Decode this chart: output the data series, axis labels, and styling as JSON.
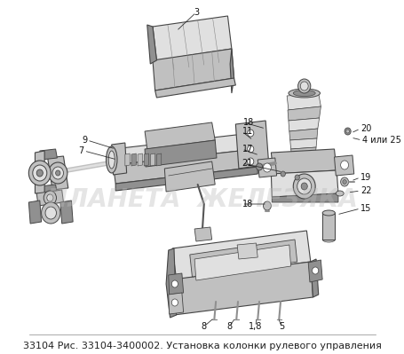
{
  "caption": "33104 Рис. 33104-3400002. Установка колонки рулевого управления",
  "background_color": "#ffffff",
  "caption_fontsize": 8.0,
  "fig_width": 4.56,
  "fig_height": 3.99,
  "dpi": 100,
  "watermark": "ПЛАНЕТА  ЖЕЛЕЗЯКА",
  "watermark_color": "#bbbbbb",
  "watermark_fontsize": 20,
  "watermark_alpha": 0.38,
  "edge_color": "#444444",
  "fill_light": "#e0e0e0",
  "fill_mid": "#c0c0c0",
  "fill_dark": "#909090",
  "fill_vdark": "#606060",
  "label_fontsize": 7.0
}
